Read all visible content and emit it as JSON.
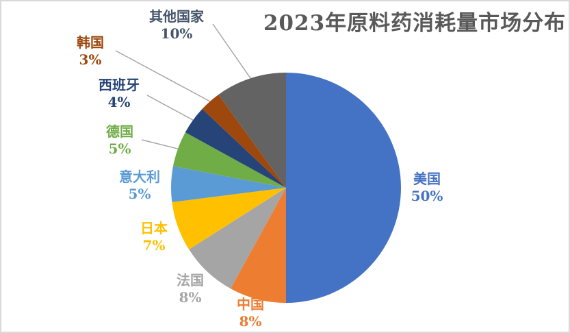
{
  "chart_data": {
    "type": "pie",
    "title": "2023年原料药消耗量市场分布",
    "title_color": "#595959",
    "background_color": "#ffffff",
    "frame_color": "#d9d9d9",
    "leader_line_color": "#a6a6a6",
    "start_angle_deg": 0,
    "direction": "clockwise",
    "categories": [
      "美国",
      "中国",
      "法国",
      "日本",
      "意大利",
      "德国",
      "西班牙",
      "韩国",
      "其他国家"
    ],
    "values": [
      50,
      8,
      8,
      7,
      5,
      5,
      4,
      3,
      10
    ],
    "slices": [
      {
        "label": "美国",
        "value": 50,
        "pct_text": "50%",
        "color": "#4472C4",
        "label_color": "#4472C4"
      },
      {
        "label": "中国",
        "value": 8,
        "pct_text": "8%",
        "color": "#ED7D31",
        "label_color": "#ED7D31"
      },
      {
        "label": "法国",
        "value": 8,
        "pct_text": "8%",
        "color": "#A5A5A5",
        "label_color": "#A5A5A5"
      },
      {
        "label": "日本",
        "value": 7,
        "pct_text": "7%",
        "color": "#FFC000",
        "label_color": "#FFC000"
      },
      {
        "label": "意大利",
        "value": 5,
        "pct_text": "5%",
        "color": "#5B9BD5",
        "label_color": "#5B9BD5"
      },
      {
        "label": "德国",
        "value": 5,
        "pct_text": "5%",
        "color": "#70AD47",
        "label_color": "#70AD47"
      },
      {
        "label": "西班牙",
        "value": 4,
        "pct_text": "4%",
        "color": "#264478",
        "label_color": "#264478"
      },
      {
        "label": "韩国",
        "value": 3,
        "pct_text": "3%",
        "color": "#9E480E",
        "label_color": "#9E480E"
      },
      {
        "label": "其他国家",
        "value": 10,
        "pct_text": "10%",
        "color": "#636363",
        "label_color": "#44546A"
      }
    ]
  }
}
